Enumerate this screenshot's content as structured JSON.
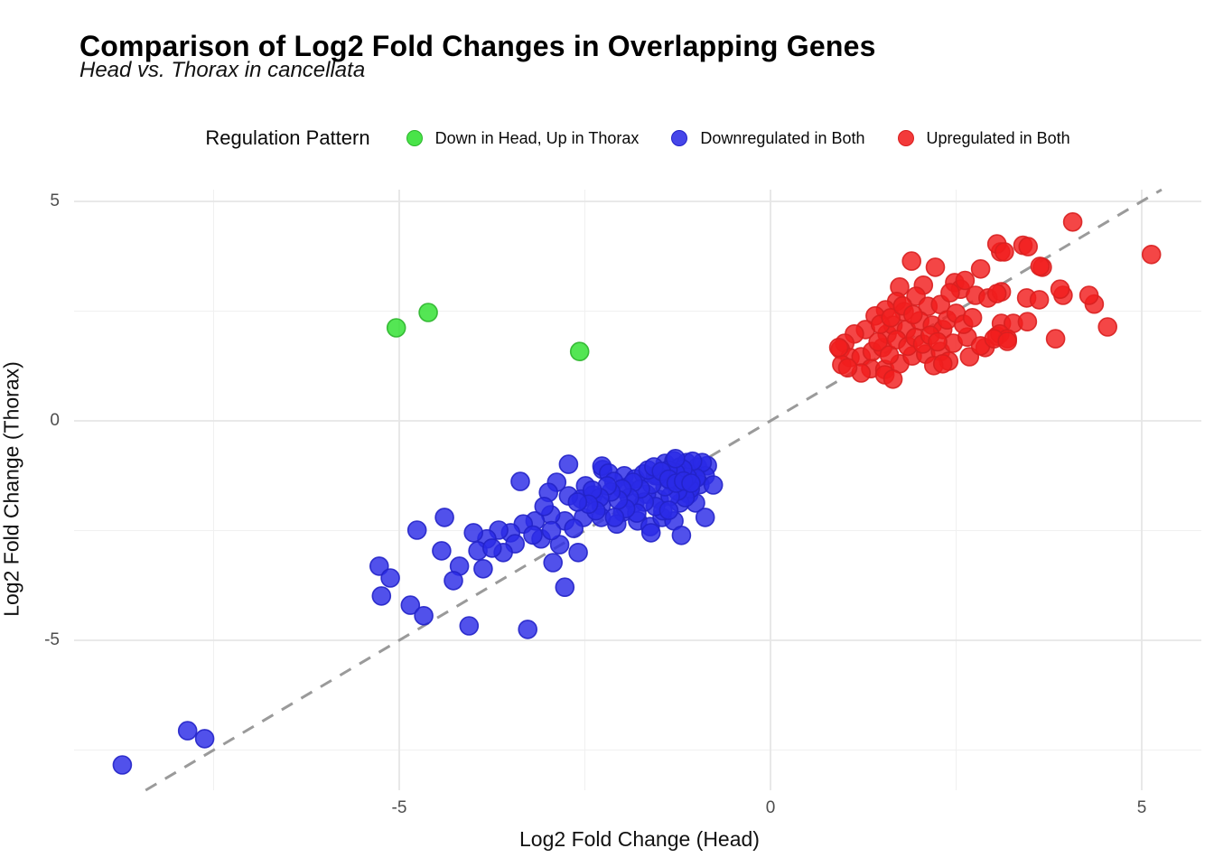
{
  "title": "Comparison of Log2 Fold Changes in Overlapping Genes",
  "subtitle": "Head vs. Thorax in cancellata",
  "legend": {
    "title": "Regulation Pattern",
    "position": "top"
  },
  "axes": {
    "x": {
      "label": "Log2 Fold Change (Head)",
      "ticks": [
        -5,
        0,
        5
      ]
    },
    "y": {
      "label": "Log2 Fold Change (Thorax)",
      "ticks": [
        5,
        0,
        -5
      ]
    }
  },
  "chart_data": {
    "type": "scatter",
    "title": "Comparison of Log2 Fold Changes in Overlapping Genes",
    "subtitle": "Head vs. Thorax in cancellata",
    "xlabel": "Log2 Fold Change (Head)",
    "ylabel": "Log2 Fold Change (Thorax)",
    "xlim": [
      -9.4,
      5.8
    ],
    "ylim": [
      -8.4,
      5.3
    ],
    "x_major_gridlines": [
      -5,
      0,
      5
    ],
    "x_minor_gridlines": [
      -7.5,
      -2.5,
      2.5
    ],
    "y_major_gridlines": [
      5,
      0,
      -5
    ],
    "y_minor_gridlines": [
      2.5,
      -2.5,
      -7.5
    ],
    "grid": true,
    "legend_position": "top",
    "identity_line": {
      "equation": "y = x",
      "style": "dashed",
      "color": "#9a9a9a"
    },
    "series": [
      {
        "name": "Down in Head, Up in Thorax",
        "fill": "#2EE02E",
        "stroke": "#2CB52C",
        "swatch": "#49E449",
        "points": [
          [
            -5.04,
            2.12
          ],
          [
            -4.61,
            2.47
          ],
          [
            -2.57,
            1.58
          ]
        ]
      },
      {
        "name": "Downregulated in Both",
        "fill": "#2B2BE6",
        "stroke": "#2222C8",
        "swatch": "#4646E9",
        "points": [
          [
            -2.72,
            -0.99
          ],
          [
            -3.37,
            -1.38
          ],
          [
            -2.26,
            -1.11
          ],
          [
            -2.27,
            -1.03
          ],
          [
            -2.18,
            -1.19
          ],
          [
            -2.88,
            -1.4
          ],
          [
            -1.97,
            -1.25
          ],
          [
            -2.99,
            -1.63
          ],
          [
            -2.49,
            -1.48
          ],
          [
            -2.55,
            -1.78
          ],
          [
            -2.72,
            -1.71
          ],
          [
            -2.39,
            -1.69
          ],
          [
            -2.28,
            -1.93
          ],
          [
            -2.11,
            -1.38
          ],
          [
            -1.95,
            -1.52
          ],
          [
            -1.82,
            -1.32
          ],
          [
            -1.71,
            -1.21
          ],
          [
            -1.55,
            -1.25
          ],
          [
            -1.42,
            -0.97
          ],
          [
            -1.3,
            -0.91
          ],
          [
            -1.22,
            -1.05
          ],
          [
            -1.13,
            -0.95
          ],
          [
            -1.06,
            -1.17
          ],
          [
            -0.98,
            -1.05
          ],
          [
            -1.34,
            -1.38
          ],
          [
            -1.18,
            -1.46
          ],
          [
            -1.1,
            -1.67
          ],
          [
            -1.01,
            -1.87
          ],
          [
            -1.22,
            -1.87
          ],
          [
            -1.5,
            -1.79
          ],
          [
            -1.67,
            -1.67
          ],
          [
            -1.83,
            -1.87
          ],
          [
            -1.99,
            -2.08
          ],
          [
            -1.79,
            -2.28
          ],
          [
            -1.62,
            -2.41
          ],
          [
            -1.46,
            -2.2
          ],
          [
            -1.3,
            -2.28
          ],
          [
            -2.07,
            -2.35
          ],
          [
            -2.28,
            -2.2
          ],
          [
            -2.52,
            -2.2
          ],
          [
            -2.77,
            -2.28
          ],
          [
            -2.96,
            -2.14
          ],
          [
            -3.17,
            -2.28
          ],
          [
            -3.33,
            -2.35
          ],
          [
            -3.5,
            -2.55
          ],
          [
            -3.66,
            -2.49
          ],
          [
            -3.82,
            -2.69
          ],
          [
            -3.94,
            -2.96
          ],
          [
            -4.39,
            -2.2
          ],
          [
            -4.76,
            -2.49
          ],
          [
            -4.43,
            -2.96
          ],
          [
            -4.19,
            -3.31
          ],
          [
            -3.87,
            -3.37
          ],
          [
            -4.27,
            -3.64
          ],
          [
            -5.27,
            -3.31
          ],
          [
            -5.12,
            -3.58
          ],
          [
            -5.24,
            -3.99
          ],
          [
            -4.85,
            -4.2
          ],
          [
            -4.67,
            -4.44
          ],
          [
            -4.06,
            -4.67
          ],
          [
            -3.27,
            -4.75
          ],
          [
            -2.77,
            -3.79
          ],
          [
            -2.93,
            -3.23
          ],
          [
            -3.09,
            -2.69
          ],
          [
            -2.84,
            -2.82
          ],
          [
            -2.59,
            -3.0
          ],
          [
            -7.85,
            -7.06
          ],
          [
            -7.62,
            -7.24
          ],
          [
            -8.73,
            -7.84
          ],
          [
            -0.85,
            -1.02
          ],
          [
            -0.88,
            -1.25
          ],
          [
            -0.92,
            -0.95
          ],
          [
            -0.95,
            -1.45
          ],
          [
            -1.0,
            -1.3
          ],
          [
            -1.05,
            -0.92
          ],
          [
            -1.08,
            -1.55
          ],
          [
            -1.12,
            -1.28
          ],
          [
            -1.15,
            -1.75
          ],
          [
            -1.18,
            -1.1
          ],
          [
            -1.25,
            -1.6
          ],
          [
            -1.28,
            -1.18
          ],
          [
            -1.35,
            -1.72
          ],
          [
            -1.38,
            -1.12
          ],
          [
            -1.42,
            -1.5
          ],
          [
            -1.45,
            -2.05
          ],
          [
            -1.52,
            -1.25
          ],
          [
            -1.55,
            -1.95
          ],
          [
            -1.6,
            -1.45
          ],
          [
            -1.61,
            -2.55
          ],
          [
            -1.65,
            -1.12
          ],
          [
            -1.7,
            -1.85
          ],
          [
            -1.75,
            -1.55
          ],
          [
            -1.8,
            -2.1
          ],
          [
            -1.85,
            -1.4
          ],
          [
            -1.9,
            -1.75
          ],
          [
            -1.95,
            -2.0
          ],
          [
            -2.0,
            -1.55
          ],
          [
            -2.05,
            -1.8
          ],
          [
            -2.1,
            -2.2
          ],
          [
            -2.15,
            -1.62
          ],
          [
            -2.2,
            -1.48
          ],
          [
            -2.3,
            -1.75
          ],
          [
            -2.35,
            -2.05
          ],
          [
            -2.4,
            -1.58
          ],
          [
            -2.45,
            -1.9
          ],
          [
            -2.6,
            -1.85
          ],
          [
            -2.65,
            -2.45
          ],
          [
            -3.05,
            -1.95
          ],
          [
            -3.2,
            -2.6
          ],
          [
            -3.44,
            -2.8
          ],
          [
            -3.6,
            -3.0
          ],
          [
            -2.95,
            -2.5
          ],
          [
            -3.75,
            -2.9
          ],
          [
            -4.0,
            -2.55
          ],
          [
            -1.57,
            -1.05
          ],
          [
            -1.47,
            -1.15
          ],
          [
            -1.37,
            -1.33
          ],
          [
            -1.27,
            -1.42
          ],
          [
            -1.17,
            -1.37
          ],
          [
            -1.07,
            -1.42
          ],
          [
            -1.37,
            -2.04
          ],
          [
            -0.88,
            -2.2
          ],
          [
            -0.77,
            -1.46
          ],
          [
            -1.2,
            -2.61
          ],
          [
            -1.28,
            -0.86
          ]
        ]
      },
      {
        "name": "Upregulated in Both",
        "fill": "#F21D1D",
        "stroke": "#D81F1F",
        "swatch": "#F33A3A",
        "points": [
          [
            1.9,
            3.64
          ],
          [
            2.22,
            3.5
          ],
          [
            2.83,
            3.46
          ],
          [
            3.1,
            3.85
          ],
          [
            1.74,
            3.05
          ],
          [
            2.06,
            3.09
          ],
          [
            2.48,
            3.15
          ],
          [
            2.56,
            3.0
          ],
          [
            2.76,
            2.86
          ],
          [
            2.93,
            2.8
          ],
          [
            1.7,
            2.72
          ],
          [
            1.96,
            2.84
          ],
          [
            1.55,
            2.53
          ],
          [
            1.8,
            2.49
          ],
          [
            2.12,
            2.61
          ],
          [
            2.29,
            2.65
          ],
          [
            1.41,
            2.39
          ],
          [
            1.28,
            2.08
          ],
          [
            1.13,
            1.98
          ],
          [
            1.0,
            1.77
          ],
          [
            0.94,
            1.63
          ],
          [
            1.07,
            1.44
          ],
          [
            0.96,
            1.28
          ],
          [
            1.22,
            1.46
          ],
          [
            1.37,
            1.58
          ],
          [
            1.51,
            1.67
          ],
          [
            1.57,
            1.98
          ],
          [
            1.65,
            2.18
          ],
          [
            1.83,
            2.08
          ],
          [
            2.01,
            2.28
          ],
          [
            2.18,
            2.18
          ],
          [
            2.32,
            2.08
          ],
          [
            1.35,
            1.19
          ],
          [
            1.54,
            1.17
          ],
          [
            1.74,
            1.3
          ],
          [
            1.91,
            1.48
          ],
          [
            2.09,
            1.52
          ],
          [
            2.29,
            1.58
          ],
          [
            2.46,
            1.77
          ],
          [
            2.65,
            1.91
          ],
          [
            2.4,
            1.36
          ],
          [
            2.2,
            1.26
          ],
          [
            2.68,
            1.46
          ],
          [
            2.89,
            1.67
          ],
          [
            3.05,
            1.93
          ],
          [
            3.11,
            2.22
          ],
          [
            3.11,
            2.94
          ],
          [
            3.05,
            4.03
          ],
          [
            4.07,
            4.53
          ],
          [
            3.15,
            3.85
          ],
          [
            3.4,
            4.0
          ],
          [
            3.47,
            3.97
          ],
          [
            3.66,
            3.5
          ],
          [
            5.13,
            3.79
          ],
          [
            3.05,
            2.9
          ],
          [
            3.45,
            2.8
          ],
          [
            3.62,
            2.76
          ],
          [
            3.94,
            2.86
          ],
          [
            4.36,
            2.66
          ],
          [
            3.27,
            2.22
          ],
          [
            3.46,
            2.26
          ],
          [
            3.09,
            1.98
          ],
          [
            3.19,
            1.87
          ],
          [
            3.84,
            1.87
          ],
          [
            4.54,
            2.14
          ],
          [
            1.54,
            1.05
          ],
          [
            1.22,
            1.09
          ],
          [
            1.65,
            0.95
          ],
          [
            1.04,
            1.21
          ],
          [
            0.92,
            1.67
          ],
          [
            2.32,
            1.3
          ],
          [
            2.83,
            1.71
          ],
          [
            3.01,
            1.87
          ],
          [
            3.19,
            1.81
          ],
          [
            3.63,
            3.52
          ],
          [
            3.9,
            3.0
          ],
          [
            4.29,
            2.86
          ],
          [
            1.45,
            1.8
          ],
          [
            1.6,
            1.5
          ],
          [
            1.7,
            1.85
          ],
          [
            1.85,
            1.7
          ],
          [
            1.95,
            1.9
          ],
          [
            2.05,
            1.75
          ],
          [
            2.15,
            1.95
          ],
          [
            2.25,
            1.8
          ],
          [
            2.38,
            2.3
          ],
          [
            2.5,
            2.45
          ],
          [
            2.6,
            2.2
          ],
          [
            2.72,
            2.35
          ],
          [
            1.48,
            2.2
          ],
          [
            1.62,
            2.35
          ],
          [
            1.78,
            2.62
          ],
          [
            1.92,
            2.42
          ],
          [
            2.42,
            2.92
          ],
          [
            2.62,
            3.2
          ]
        ]
      }
    ]
  }
}
